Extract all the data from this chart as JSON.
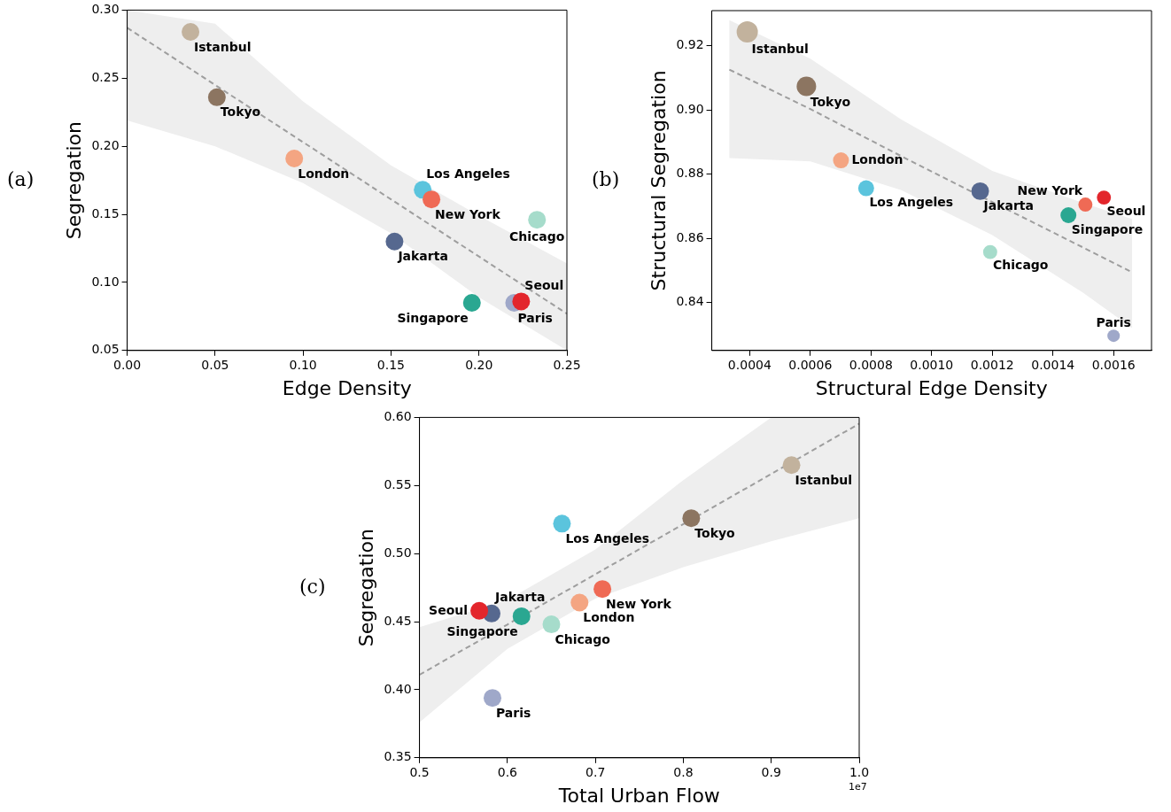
{
  "chart_data": [
    {
      "type": "scatter",
      "xlabel": "Edge Density",
      "ylabel": "Segregation",
      "annotations": [
        "(a)"
      ],
      "grid": false,
      "marker": "circle",
      "xlim": [
        0,
        0.25
      ],
      "ylim": [
        0.05,
        0.3
      ],
      "xticks": [
        {
          "value": 0,
          "label": "0.00"
        },
        {
          "value": 0.05,
          "label": "0.05"
        },
        {
          "value": 0.1,
          "label": "0.10"
        },
        {
          "value": 0.15,
          "label": "0.15"
        },
        {
          "value": 0.2,
          "label": "0.20"
        },
        {
          "value": 0.25,
          "label": "0.25"
        }
      ],
      "yticks": [
        {
          "value": 0.05,
          "label": "0.05"
        },
        {
          "value": 0.1,
          "label": "0.10"
        },
        {
          "value": 0.15,
          "label": "0.15"
        },
        {
          "value": 0.2,
          "label": "0.20"
        },
        {
          "value": 0.25,
          "label": "0.25"
        },
        {
          "value": 0.3,
          "label": "0.30"
        }
      ],
      "series": [
        {
          "type": "line",
          "line_style": "dashed",
          "marker": "none",
          "color": "#9e9e9e",
          "x": [
            0,
            0.05,
            0.1,
            0.15,
            0.2,
            0.25
          ],
          "values": [
            0.287,
            0.245,
            0.203,
            0.161,
            0.119,
            0.077
          ],
          "lower": [
            0.219,
            0.2,
            0.173,
            0.136,
            0.089,
            0.05
          ],
          "upper": [
            0.3,
            0.29,
            0.233,
            0.186,
            0.149,
            0.114
          ]
        },
        {
          "name": "Istanbul",
          "color": "#c2b29d",
          "x": [
            0.036
          ],
          "values": [
            0.284
          ]
        },
        {
          "name": "Tokyo",
          "color": "#8c7561",
          "x": [
            0.051
          ],
          "values": [
            0.236
          ]
        },
        {
          "name": "London",
          "color": "#f4a582",
          "x": [
            0.095
          ],
          "values": [
            0.191
          ]
        },
        {
          "name": "Los Angeles",
          "color": "#5bc4dd",
          "x": [
            0.168
          ],
          "values": [
            0.168
          ]
        },
        {
          "name": "New York",
          "color": "#ef6a55",
          "x": [
            0.173
          ],
          "values": [
            0.161
          ]
        },
        {
          "name": "Chicago",
          "color": "#a6dccb",
          "x": [
            0.233
          ],
          "values": [
            0.146
          ]
        },
        {
          "name": "Jakarta",
          "color": "#56688f",
          "x": [
            0.152
          ],
          "values": [
            0.13
          ]
        },
        {
          "name": "Singapore",
          "color": "#2aa791",
          "x": [
            0.196
          ],
          "values": [
            0.085
          ]
        },
        {
          "name": "Paris",
          "color": "#9fa8c9",
          "x": [
            0.22
          ],
          "values": [
            0.085
          ]
        },
        {
          "name": "Seoul",
          "color": "#e3262c",
          "x": [
            0.224
          ],
          "values": [
            0.086
          ]
        }
      ]
    },
    {
      "type": "bubble",
      "xlabel": "Structural Edge Density",
      "ylabel": "Structural Segregation",
      "annotations": [
        "(b)"
      ],
      "grid": false,
      "marker": "circle",
      "xlim": [
        0.000275,
        0.001725
      ],
      "ylim": [
        0.825,
        0.931
      ],
      "xticks": [
        {
          "value": 0.0004,
          "label": "0.0004"
        },
        {
          "value": 0.0006,
          "label": "0.0006"
        },
        {
          "value": 0.0008,
          "label": "0.0008"
        },
        {
          "value": 0.001,
          "label": "0.0010"
        },
        {
          "value": 0.0012,
          "label": "0.0012"
        },
        {
          "value": 0.0014,
          "label": "0.0014"
        },
        {
          "value": 0.0016,
          "label": "0.0016"
        }
      ],
      "yticks": [
        {
          "value": 0.84,
          "label": "0.84"
        },
        {
          "value": 0.86,
          "label": "0.86"
        },
        {
          "value": 0.88,
          "label": "0.88"
        },
        {
          "value": 0.9,
          "label": "0.90"
        },
        {
          "value": 0.92,
          "label": "0.92"
        }
      ],
      "series": [
        {
          "type": "line",
          "line_style": "dashed",
          "marker": "none",
          "color": "#9e9e9e",
          "x": [
            0.000333,
            0.0006,
            0.0009,
            0.0012,
            0.0015,
            0.001661
          ],
          "values": [
            0.9126,
            0.9003,
            0.8856,
            0.8713,
            0.8571,
            0.8494
          ],
          "lower": [
            0.885,
            0.884,
            0.875,
            0.861,
            0.843,
            0.832
          ],
          "upper": [
            0.928,
            0.916,
            0.897,
            0.881,
            0.871,
            0.866
          ]
        },
        {
          "name": "Istanbul",
          "color": "#c2b29d",
          "x": [
            0.000392
          ],
          "values": [
            0.9244
          ],
          "sizes": [
            1
          ]
        },
        {
          "name": "Tokyo",
          "color": "#8c7561",
          "x": [
            0.000587
          ],
          "values": [
            0.9074
          ],
          "sizes": [
            0.84
          ]
        },
        {
          "name": "London",
          "color": "#f4a582",
          "x": [
            0.000701
          ],
          "values": [
            0.8843
          ],
          "sizes": [
            0.56
          ]
        },
        {
          "name": "Los Angeles",
          "color": "#5bc4dd",
          "x": [
            0.000784
          ],
          "values": [
            0.8756
          ],
          "sizes": [
            0.56
          ]
        },
        {
          "name": "Jakarta",
          "color": "#56688f",
          "x": [
            0.00116
          ],
          "values": [
            0.8747
          ],
          "sizes": [
            0.69
          ]
        },
        {
          "name": "New York",
          "color": "#ef6a55",
          "x": [
            0.001507
          ],
          "values": [
            0.8705
          ],
          "sizes": [
            0.44
          ]
        },
        {
          "name": "Seoul",
          "color": "#e3262c",
          "x": [
            0.001568
          ],
          "values": [
            0.8727
          ],
          "sizes": [
            0.44
          ]
        },
        {
          "name": "Singapore",
          "color": "#2aa791",
          "x": [
            0.001451
          ],
          "values": [
            0.8672
          ],
          "sizes": [
            0.56
          ]
        },
        {
          "name": "Chicago",
          "color": "#a6dccb",
          "x": [
            0.001193
          ],
          "values": [
            0.8557
          ],
          "sizes": [
            0.44
          ]
        },
        {
          "name": "Paris",
          "color": "#9fa8c9",
          "x": [
            0.0016
          ],
          "values": [
            0.8296
          ],
          "sizes": [
            0.34
          ]
        }
      ]
    },
    {
      "type": "scatter",
      "xlabel": "Total Urban Flow",
      "ylabel": "Segregation",
      "annotations": [
        "(c)",
        "1e7"
      ],
      "grid": false,
      "marker": "circle",
      "xlim": [
        0.5,
        1.0
      ],
      "ylim": [
        0.35,
        0.6
      ],
      "xticks": [
        {
          "value": 0.5,
          "label": "0.5"
        },
        {
          "value": 0.6,
          "label": "0.6"
        },
        {
          "value": 0.7,
          "label": "0.7"
        },
        {
          "value": 0.8,
          "label": "0.8"
        },
        {
          "value": 0.9,
          "label": "0.9"
        },
        {
          "value": 1.0,
          "label": "1.0"
        }
      ],
      "yticks": [
        {
          "value": 0.35,
          "label": "0.35"
        },
        {
          "value": 0.4,
          "label": "0.40"
        },
        {
          "value": 0.45,
          "label": "0.45"
        },
        {
          "value": 0.5,
          "label": "0.50"
        },
        {
          "value": 0.55,
          "label": "0.55"
        },
        {
          "value": 0.6,
          "label": "0.60"
        }
      ],
      "series": [
        {
          "type": "line",
          "line_style": "dashed",
          "marker": "none",
          "color": "#9e9e9e",
          "x": [
            0.5,
            0.6,
            0.7,
            0.8,
            0.9,
            1.0
          ],
          "values": [
            0.411,
            0.4479,
            0.4848,
            0.5216,
            0.5585,
            0.5954
          ],
          "lower": [
            0.376,
            0.43,
            0.467,
            0.49,
            0.509,
            0.526
          ],
          "upper": [
            0.446,
            0.466,
            0.503,
            0.554,
            0.6,
            0.6
          ]
        },
        {
          "name": "Istanbul",
          "color": "#c2b29d",
          "x": [
            0.923
          ],
          "values": [
            0.565
          ]
        },
        {
          "name": "Tokyo",
          "color": "#8c7561",
          "x": [
            0.809
          ],
          "values": [
            0.526
          ]
        },
        {
          "name": "Los Angeles",
          "color": "#5bc4dd",
          "x": [
            0.662
          ],
          "values": [
            0.522
          ]
        },
        {
          "name": "New York",
          "color": "#ef6a55",
          "x": [
            0.708
          ],
          "values": [
            0.474
          ]
        },
        {
          "name": "London",
          "color": "#f4a582",
          "x": [
            0.682
          ],
          "values": [
            0.464
          ]
        },
        {
          "name": "Chicago",
          "color": "#a6dccb",
          "x": [
            0.65
          ],
          "values": [
            0.448
          ]
        },
        {
          "name": "Singapore",
          "color": "#2aa791",
          "x": [
            0.616
          ],
          "values": [
            0.454
          ]
        },
        {
          "name": "Jakarta",
          "color": "#56688f",
          "x": [
            0.582
          ],
          "values": [
            0.456
          ]
        },
        {
          "name": "Seoul",
          "color": "#e3262c",
          "x": [
            0.568
          ],
          "values": [
            0.458
          ]
        },
        {
          "name": "Paris",
          "color": "#9fa8c9",
          "x": [
            0.583
          ],
          "values": [
            0.394
          ]
        }
      ]
    }
  ]
}
